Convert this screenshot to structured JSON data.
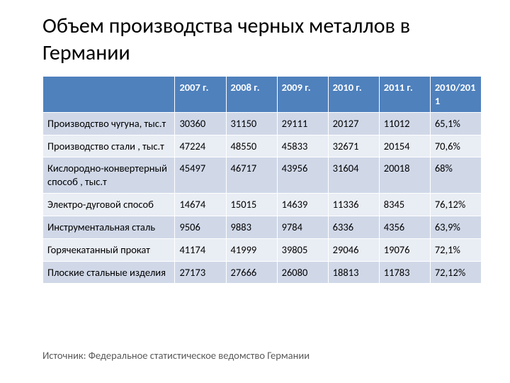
{
  "title": "Объем производства черных металлов в Германии",
  "source": "Источник: Федеральное статистическое ведомство Германии",
  "table": {
    "header_row_bg": "#4f81bd",
    "header_fg": "#ffffff",
    "band_colors": [
      "#d0d8e8",
      "#e9edf4"
    ],
    "border_color": "#ffffff",
    "font_size": 14.5,
    "columns": [
      "",
      "2007 г.",
      "2008 г.",
      "2009 г.",
      "2010 г.",
      "2011 г.",
      "2010/2011"
    ],
    "rows": [
      {
        "label": "Производство чугуна, тыс.т",
        "values": [
          "30360",
          "31150",
          "29111",
          "20127",
          "11012",
          "65,1%"
        ]
      },
      {
        "label": "Производство стали , тыс.т",
        "values": [
          "47224",
          "48550",
          "45833",
          "32671",
          "20154",
          "70,6%"
        ]
      },
      {
        "label": "Кислородно-конвертерный способ , тыс.т",
        "values": [
          "45497",
          "46717",
          "43956",
          "31604",
          "20018",
          "68%"
        ]
      },
      {
        "label": "Электро-дуговой способ",
        "values": [
          "14674",
          "15015",
          "14639",
          "11336",
          "8345",
          "76,12%"
        ]
      },
      {
        "label": "Инструментальная сталь",
        "values": [
          "9506",
          "9883",
          "9784",
          "6336",
          "4356",
          "63,9%"
        ]
      },
      {
        "label": "Горячекатанный прокат",
        "values": [
          "41174",
          "41999",
          "39805",
          "29046",
          "19076",
          "72,1%"
        ]
      },
      {
        "label": "Плоские стальные изделия",
        "values": [
          "27173",
          "27666",
          "26080",
          "18813",
          "11783",
          "72,12%"
        ]
      }
    ]
  }
}
